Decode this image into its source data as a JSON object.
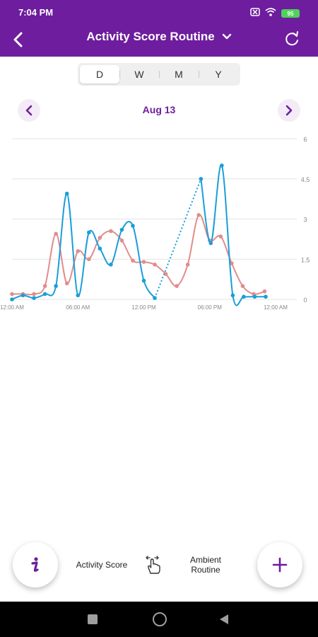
{
  "status_bar": {
    "time": "7:04 PM",
    "battery": "95"
  },
  "header": {
    "title": "Activity Score Routine"
  },
  "period_tabs": [
    {
      "label": "D",
      "active": true
    },
    {
      "label": "W",
      "active": false
    },
    {
      "label": "M",
      "active": false
    },
    {
      "label": "Y",
      "active": false
    }
  ],
  "date_nav": {
    "label": "Aug 13"
  },
  "colors": {
    "brand": "#6e1d9e",
    "activity_series": "#1a9ed8",
    "ambient_series": "#e28c8c"
  },
  "chart_data": {
    "type": "line",
    "y_ticks": [
      "0",
      "1.5",
      "3",
      "4.5",
      "6"
    ],
    "ylim": [
      0,
      6
    ],
    "x_ticks": [
      {
        "x": 0,
        "label": "12:00 AM"
      },
      {
        "x": 6,
        "label": "06:00 AM"
      },
      {
        "x": 12,
        "label": "12:00 PM"
      },
      {
        "x": 18,
        "label": "06:00 PM"
      },
      {
        "x": 24,
        "label": "12:00 AM"
      }
    ],
    "xlim": [
      0,
      24
    ],
    "series": [
      {
        "key": "activity",
        "color": "#1a9ed8",
        "points": [
          [
            0,
            0
          ],
          [
            1,
            0.15
          ],
          [
            2,
            0.05
          ],
          [
            3,
            0.2
          ],
          [
            4,
            0.5
          ],
          [
            5,
            3.95
          ],
          [
            6,
            0.15
          ],
          [
            7,
            2.5
          ],
          [
            8,
            1.9
          ],
          [
            9,
            1.3
          ],
          [
            10,
            2.6
          ],
          [
            11,
            2.75
          ],
          [
            12,
            0.7
          ],
          [
            13,
            0.05
          ]
        ],
        "dotted": [
          [
            13,
            0.05
          ],
          [
            17.2,
            4.5
          ]
        ],
        "points2": [
          [
            17.2,
            4.5
          ],
          [
            18.1,
            2.1
          ],
          [
            19.1,
            5.0
          ],
          [
            20.1,
            0.15
          ],
          [
            21.1,
            0.1
          ],
          [
            22.1,
            0.1
          ],
          [
            23.1,
            0.1
          ]
        ]
      },
      {
        "key": "ambient",
        "color": "#e28c8c",
        "points": [
          [
            0,
            0.2
          ],
          [
            1,
            0.2
          ],
          [
            2,
            0.2
          ],
          [
            3,
            0.5
          ],
          [
            4,
            2.45
          ],
          [
            5,
            0.6
          ],
          [
            6,
            1.8
          ],
          [
            7,
            1.5
          ],
          [
            8,
            2.3
          ],
          [
            9,
            2.55
          ],
          [
            10,
            2.2
          ],
          [
            11,
            1.45
          ],
          [
            12,
            1.4
          ],
          [
            13,
            1.3
          ],
          [
            14,
            0.95
          ],
          [
            15,
            0.5
          ],
          [
            16,
            1.3
          ],
          [
            17,
            3.15
          ],
          [
            18,
            2.2
          ],
          [
            19,
            2.35
          ],
          [
            20,
            1.35
          ],
          [
            21,
            0.5
          ],
          [
            22,
            0.2
          ],
          [
            23,
            0.3
          ]
        ]
      }
    ]
  },
  "bottom": {
    "activity_label": "Activity Score",
    "ambient_label_line1": "Ambient",
    "ambient_label_line2": "Routine"
  }
}
